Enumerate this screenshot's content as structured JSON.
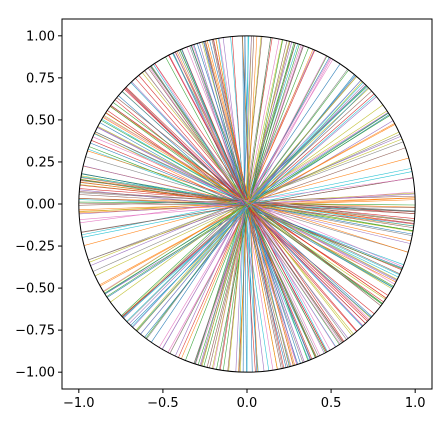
{
  "chart_data": {
    "type": "line",
    "title": "",
    "xlabel": "",
    "ylabel": "",
    "xlim": [
      -1.1,
      1.1
    ],
    "ylim": [
      -1.1,
      1.1
    ],
    "x_ticks": [
      "−1.0",
      "−0.5",
      "0.0",
      "0.5",
      "1.0"
    ],
    "y_ticks": [
      "1.00",
      "0.75",
      "0.50",
      "0.25",
      "0.00",
      "−0.25",
      "−0.50",
      "−0.75",
      "−1.00"
    ],
    "x_tick_values": [
      -1.0,
      -0.5,
      0.0,
      0.5,
      1.0
    ],
    "y_tick_values": [
      1.0,
      0.75,
      0.5,
      0.25,
      0.0,
      -0.25,
      -0.5,
      -0.75,
      -1.0
    ],
    "grid": false,
    "legend": "none",
    "circle": {
      "center": [
        0.0,
        0.0
      ],
      "radius": 1.0,
      "color": "#000000"
    },
    "series_colors": [
      "#1f77b4",
      "#ff7f0e",
      "#2ca02c",
      "#d62728",
      "#9467bd",
      "#8c564b",
      "#e377c2",
      "#7f7f7f",
      "#bcbd22",
      "#17becf"
    ],
    "line_count": 220,
    "line_angle_range_deg": [
      0,
      360
    ],
    "line_origin_spread": 0.04
  }
}
